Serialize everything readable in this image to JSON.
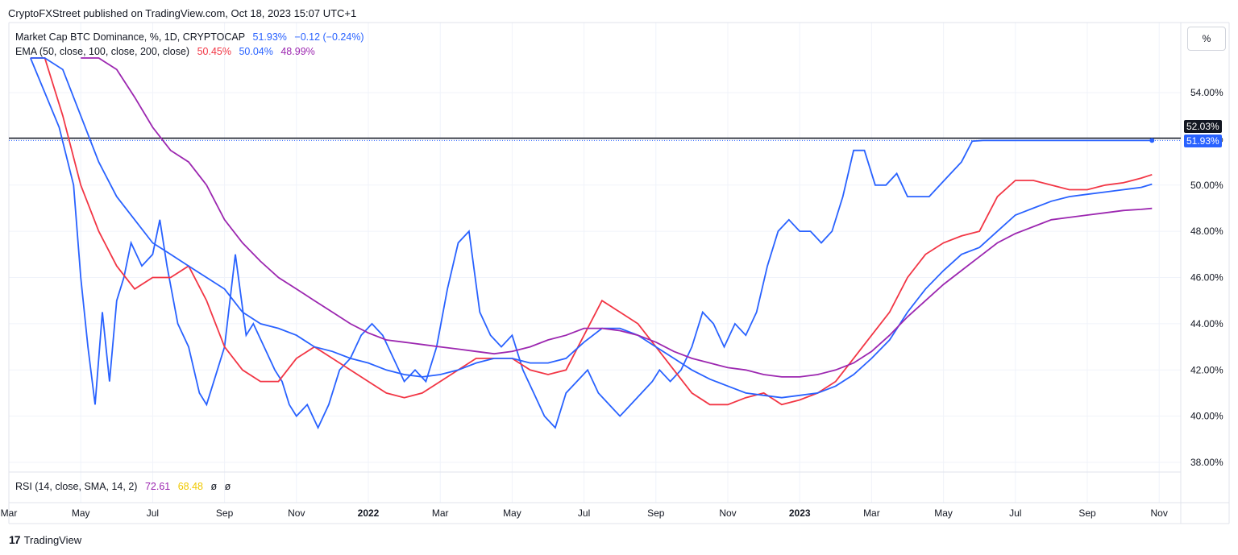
{
  "header": {
    "publisher_line": "CryptoFXStreet published on TradingView.com, Oct 18, 2023 15:07 UTC+1"
  },
  "legend": {
    "main": {
      "label": "Market Cap BTC Dominance, %, 1D, CRYPTOCAP",
      "value": "51.93%",
      "change": "−0.12 (−0.24%)",
      "color": "#2962ff"
    },
    "ema": {
      "label": "EMA (50, close, 100, close, 200, close)",
      "v50": "50.45%",
      "v100": "50.04%",
      "v200": "48.99%",
      "c50": "#f23645",
      "c100": "#2962ff",
      "c200": "#9c27b0"
    },
    "rsi": {
      "label": "RSI (14, close, SMA, 14, 2)",
      "v1": "72.61",
      "v2": "68.48",
      "v3": "ø",
      "v4": "ø",
      "c1": "#9c27b0",
      "c2": "#f0c800"
    }
  },
  "unit_button": {
    "label": "%"
  },
  "price_tags": {
    "line": "52.03%",
    "last": "51.93%"
  },
  "brand": {
    "name": "TradingView",
    "logo": "TV-logo-icon"
  },
  "chart_data": {
    "type": "line",
    "ylim": [
      37.5,
      55.5
    ],
    "y_ticks": [
      "54.00%",
      "52.00%",
      "50.00%",
      "48.00%",
      "46.00%",
      "44.00%",
      "42.00%",
      "40.00%",
      "38.00%"
    ],
    "y_tick_values": [
      54,
      52,
      50,
      48,
      46,
      44,
      42,
      40,
      38
    ],
    "x_ticks": [
      "Mar",
      "May",
      "Jul",
      "Sep",
      "Nov",
      "2022",
      "Mar",
      "May",
      "Jul",
      "Sep",
      "Nov",
      "2023",
      "Mar",
      "May",
      "Jul",
      "Sep",
      "Nov"
    ],
    "x_tick_months": [
      0,
      2,
      4,
      6,
      8,
      10,
      12,
      14,
      16,
      18,
      20,
      22,
      24,
      26,
      28,
      30,
      32
    ],
    "x_start": "2021-03",
    "horizontal_line": 52.03,
    "last_value": 51.93,
    "series": [
      {
        "name": "BTC Dominance",
        "color": "#2962ff",
        "x": [
          0.6,
          1.4,
          1.8,
          2.0,
          2.2,
          2.4,
          2.6,
          2.8,
          3.0,
          3.2,
          3.4,
          3.7,
          4.0,
          4.2,
          4.4,
          4.7,
          5.0,
          5.3,
          5.5,
          5.8,
          6.0,
          6.3,
          6.6,
          6.8,
          7.1,
          7.4,
          7.6,
          7.8,
          8.0,
          8.3,
          8.6,
          8.9,
          9.2,
          9.5,
          9.8,
          10.1,
          10.4,
          10.7,
          11.0,
          11.3,
          11.6,
          11.9,
          12.2,
          12.5,
          12.8,
          13.1,
          13.4,
          13.7,
          14.0,
          14.3,
          14.6,
          14.9,
          15.2,
          15.5,
          15.8,
          16.1,
          16.4,
          16.7,
          17.0,
          17.3,
          17.6,
          17.9,
          18.1,
          18.4,
          18.7,
          19.0,
          19.3,
          19.6,
          19.9,
          20.2,
          20.5,
          20.8,
          21.1,
          21.4,
          21.7,
          22.0,
          22.3,
          22.6,
          22.9,
          23.2,
          23.5,
          23.8,
          24.1,
          24.4,
          24.7,
          25.0,
          25.3,
          25.6,
          25.9,
          26.2,
          26.5,
          26.8,
          27.1,
          27.4,
          27.7,
          28.0,
          28.3,
          28.6,
          28.9,
          29.2,
          29.5,
          29.8,
          30.1,
          30.4,
          30.7,
          31.0,
          31.3,
          31.6,
          31.8
        ],
        "values": [
          55.5,
          52.5,
          50.0,
          46.0,
          43.0,
          40.5,
          44.5,
          41.5,
          45.0,
          46.0,
          47.5,
          46.5,
          47.0,
          48.5,
          46.5,
          44.0,
          43.0,
          41.0,
          40.5,
          42.0,
          43.0,
          47.0,
          43.5,
          44.0,
          43.0,
          42.0,
          41.5,
          40.5,
          40.0,
          40.5,
          39.5,
          40.5,
          42.0,
          42.5,
          43.5,
          44.0,
          43.5,
          42.5,
          41.5,
          42.0,
          41.5,
          43.0,
          45.5,
          47.5,
          48.0,
          44.5,
          43.5,
          43.0,
          43.5,
          42.0,
          41.0,
          40.0,
          39.5,
          41.0,
          41.5,
          42.0,
          41.0,
          40.5,
          40.0,
          40.5,
          41.0,
          41.5,
          42.0,
          41.5,
          42.0,
          43.0,
          44.5,
          44.0,
          43.0,
          44.0,
          43.5,
          44.5,
          46.5,
          48.0,
          48.5,
          48.0,
          48.0,
          47.5,
          48.0,
          49.5,
          51.5,
          51.5,
          50.0,
          50.0,
          50.5,
          49.5,
          49.5,
          49.5,
          50.0,
          50.5,
          51.0,
          51.9,
          51.93,
          51.93,
          51.93,
          51.93,
          51.93,
          51.93,
          51.93,
          51.93,
          51.93,
          51.93,
          51.93,
          51.93,
          51.93,
          51.93,
          51.93,
          51.93,
          51.93
        ]
      },
      {
        "name": "EMA 50",
        "color": "#f23645",
        "x": [
          0.6,
          1.0,
          1.5,
          2.0,
          2.5,
          3.0,
          3.5,
          4.0,
          4.5,
          5.0,
          5.5,
          6.0,
          6.5,
          7.0,
          7.5,
          8.0,
          8.5,
          9.0,
          9.5,
          10.0,
          10.5,
          11.0,
          11.5,
          12.0,
          12.5,
          13.0,
          13.5,
          14.0,
          14.5,
          15.0,
          15.5,
          16.0,
          16.5,
          17.0,
          17.5,
          18.0,
          18.5,
          19.0,
          19.5,
          20.0,
          20.5,
          21.0,
          21.5,
          22.0,
          22.5,
          23.0,
          23.5,
          24.0,
          24.5,
          25.0,
          25.5,
          26.0,
          26.5,
          27.0,
          27.5,
          28.0,
          28.5,
          29.0,
          29.5,
          30.0,
          30.5,
          31.0,
          31.5,
          31.8
        ],
        "values": [
          55.5,
          55.5,
          53.0,
          50.0,
          48.0,
          46.5,
          45.5,
          46.0,
          46.0,
          46.5,
          45.0,
          43.0,
          42.0,
          41.5,
          41.5,
          42.5,
          43.0,
          42.5,
          42.0,
          41.5,
          41.0,
          40.8,
          41.0,
          41.5,
          42.0,
          42.5,
          42.5,
          42.5,
          42.0,
          41.8,
          42.0,
          43.5,
          45.0,
          44.5,
          44.0,
          43.0,
          42.0,
          41.0,
          40.5,
          40.5,
          40.8,
          41.0,
          40.5,
          40.7,
          41.0,
          41.5,
          42.5,
          43.5,
          44.5,
          46.0,
          47.0,
          47.5,
          47.8,
          48.0,
          49.5,
          50.2,
          50.2,
          50.0,
          49.8,
          49.8,
          50.0,
          50.1,
          50.3,
          50.45
        ]
      },
      {
        "name": "EMA 100",
        "color": "#2962ff",
        "x": [
          0.6,
          1.0,
          1.5,
          2.0,
          2.5,
          3.0,
          3.5,
          4.0,
          4.5,
          5.0,
          5.5,
          6.0,
          6.5,
          7.0,
          7.5,
          8.0,
          8.5,
          9.0,
          9.5,
          10.0,
          10.5,
          11.0,
          11.5,
          12.0,
          12.5,
          13.0,
          13.5,
          14.0,
          14.5,
          15.0,
          15.5,
          16.0,
          16.5,
          17.0,
          17.5,
          18.0,
          18.5,
          19.0,
          19.5,
          20.0,
          20.5,
          21.0,
          21.5,
          22.0,
          22.5,
          23.0,
          23.5,
          24.0,
          24.5,
          25.0,
          25.5,
          26.0,
          26.5,
          27.0,
          27.5,
          28.0,
          28.5,
          29.0,
          29.5,
          30.0,
          30.5,
          31.0,
          31.5,
          31.8
        ],
        "values": [
          55.5,
          55.5,
          55.0,
          53.0,
          51.0,
          49.5,
          48.5,
          47.5,
          47.0,
          46.5,
          46.0,
          45.5,
          44.5,
          44.0,
          43.8,
          43.5,
          43.0,
          42.8,
          42.5,
          42.3,
          42.0,
          41.8,
          41.7,
          41.8,
          42.0,
          42.3,
          42.5,
          42.5,
          42.3,
          42.3,
          42.5,
          43.2,
          43.8,
          43.8,
          43.5,
          43.0,
          42.5,
          42.0,
          41.6,
          41.3,
          41.0,
          40.9,
          40.8,
          40.9,
          41.0,
          41.3,
          41.8,
          42.5,
          43.3,
          44.5,
          45.5,
          46.3,
          47.0,
          47.3,
          48.0,
          48.7,
          49.0,
          49.3,
          49.5,
          49.6,
          49.7,
          49.8,
          49.9,
          50.04
        ]
      },
      {
        "name": "EMA 200",
        "color": "#9c27b0",
        "x": [
          2.0,
          2.5,
          3.0,
          3.5,
          4.0,
          4.5,
          5.0,
          5.5,
          6.0,
          6.5,
          7.0,
          7.5,
          8.0,
          8.5,
          9.0,
          9.5,
          10.0,
          10.5,
          11.0,
          11.5,
          12.0,
          12.5,
          13.0,
          13.5,
          14.0,
          14.5,
          15.0,
          15.5,
          16.0,
          16.5,
          17.0,
          17.5,
          18.0,
          18.5,
          19.0,
          19.5,
          20.0,
          20.5,
          21.0,
          21.5,
          22.0,
          22.5,
          23.0,
          23.5,
          24.0,
          24.5,
          25.0,
          25.5,
          26.0,
          26.5,
          27.0,
          27.5,
          28.0,
          28.5,
          29.0,
          29.5,
          30.0,
          30.5,
          31.0,
          31.5,
          31.8
        ],
        "values": [
          55.5,
          55.5,
          55.0,
          53.8,
          52.5,
          51.5,
          51.0,
          50.0,
          48.5,
          47.5,
          46.7,
          46.0,
          45.5,
          45.0,
          44.5,
          44.0,
          43.6,
          43.3,
          43.2,
          43.1,
          43.0,
          42.9,
          42.8,
          42.7,
          42.8,
          43.0,
          43.3,
          43.5,
          43.8,
          43.8,
          43.7,
          43.5,
          43.2,
          42.8,
          42.5,
          42.3,
          42.1,
          42.0,
          41.8,
          41.7,
          41.7,
          41.8,
          42.0,
          42.3,
          42.8,
          43.5,
          44.3,
          45.0,
          45.7,
          46.3,
          46.9,
          47.5,
          47.9,
          48.2,
          48.5,
          48.6,
          48.7,
          48.8,
          48.9,
          48.95,
          48.99
        ]
      }
    ]
  }
}
